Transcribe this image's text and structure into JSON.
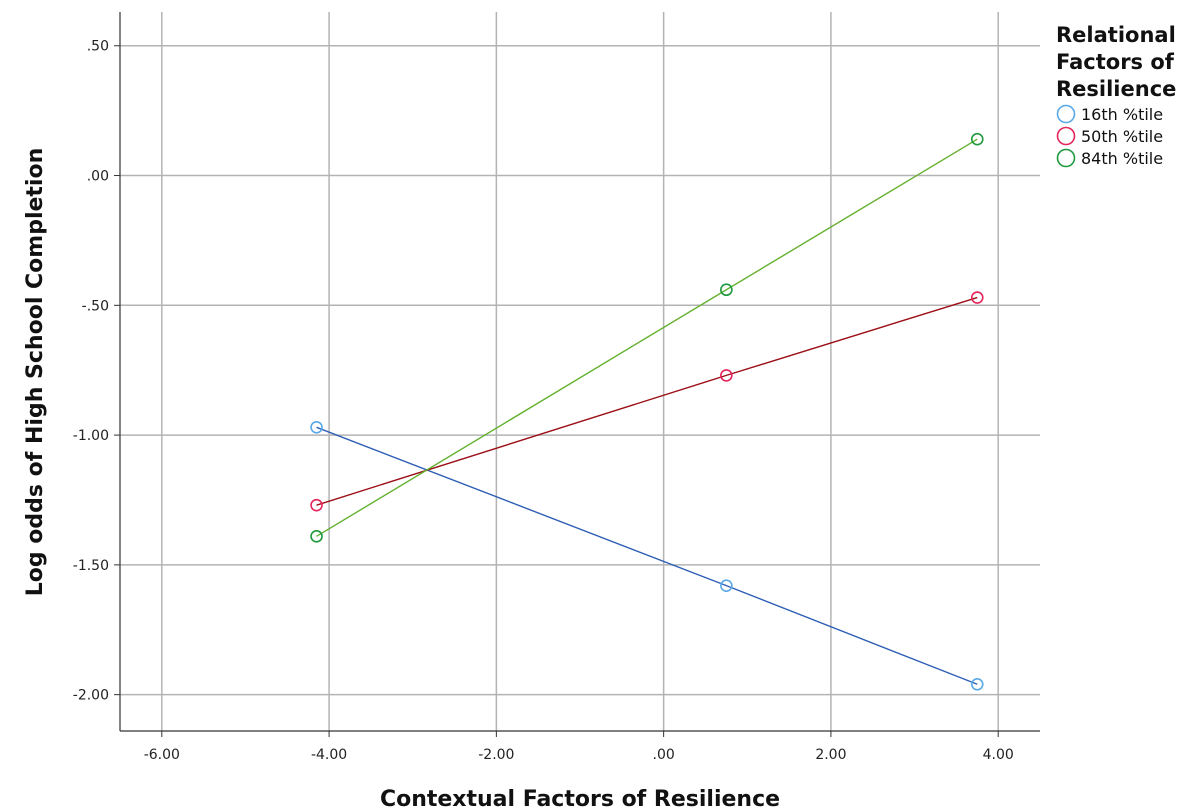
{
  "chart_data": {
    "type": "line",
    "xlabel": "Contextual Factors of Resilience",
    "ylabel": "Log odds of High School Completion",
    "xlim": [
      -6.5,
      4.5
    ],
    "ylim": [
      -2.14,
      0.63
    ],
    "xticks": [
      -6,
      -4,
      -2,
      0,
      2,
      4
    ],
    "xtick_labels": [
      "-6.00",
      "-4.00",
      "-2.00",
      ".00",
      "2.00",
      "4.00"
    ],
    "yticks": [
      0.5,
      0,
      -0.5,
      -1,
      -1.5,
      -2
    ],
    "ytick_labels": [
      ".50",
      ".00",
      "-.50",
      "-1.00",
      "-1.50",
      "-2.00"
    ],
    "grid": true,
    "legend": {
      "title": "Relational Factors of Resilience",
      "placement": "right"
    },
    "series": [
      {
        "name": "16th %tile",
        "marker_color": "#5aa9e6",
        "line_color": "#2e5fb5",
        "x": [
          -4.15,
          0.75,
          3.75
        ],
        "y": [
          -0.97,
          -1.58,
          -1.96
        ]
      },
      {
        "name": "50th %tile",
        "marker_color": "#e4245a",
        "line_color": "#9b0f16",
        "x": [
          -4.15,
          0.75,
          3.75
        ],
        "y": [
          -1.27,
          -0.77,
          -0.47
        ]
      },
      {
        "name": "84th %tile",
        "marker_color": "#1f9a3f",
        "line_color": "#63b12f",
        "x": [
          -4.15,
          0.75,
          3.75
        ],
        "y": [
          -1.39,
          -0.44,
          0.14
        ]
      }
    ]
  }
}
